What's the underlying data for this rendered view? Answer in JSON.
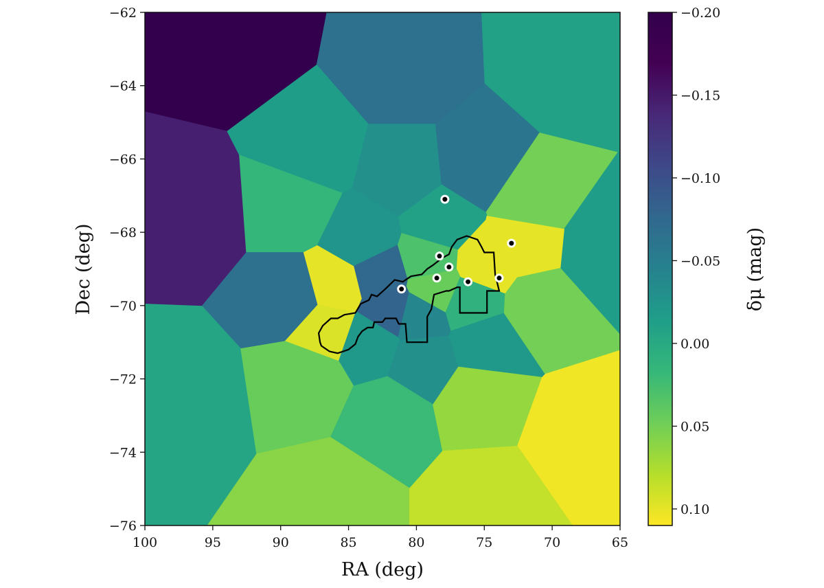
{
  "chart_data": {
    "type": "heatmap",
    "title": "",
    "xlabel": "RA (deg)",
    "ylabel": "Dec (deg)",
    "xlim": [
      100,
      65
    ],
    "ylim": [
      -76,
      -62
    ],
    "x_ticks": [
      100,
      95,
      90,
      85,
      80,
      75,
      70,
      65
    ],
    "x_tick_labels": [
      "100",
      "95",
      "90",
      "85",
      "80",
      "75",
      "70",
      "65"
    ],
    "y_ticks": [
      -62,
      -64,
      -66,
      -68,
      -70,
      -72,
      -74,
      -76
    ],
    "y_tick_labels": [
      "−62",
      "−64",
      "−66",
      "−68",
      "−70",
      "−72",
      "−74",
      "−76"
    ],
    "colorbar": {
      "label": "δμ (mag)",
      "range": [
        0.11,
        -0.2
      ],
      "ticks": [
        -0.2,
        -0.15,
        -0.1,
        -0.05,
        0.0,
        0.05,
        0.1
      ],
      "tick_labels": [
        "−0.20",
        "−0.15",
        "−0.10",
        "−0.05",
        "0.00",
        "0.05",
        "0.10"
      ],
      "colormap": "viridis"
    },
    "grid": false,
    "cells": [
      {
        "ra": 93.5,
        "dec": -62.8,
        "value": -0.2
      },
      {
        "ra": 81.0,
        "dec": -63.7,
        "value": -0.065
      },
      {
        "ra": 69.0,
        "dec": -63.5,
        "value": -0.01
      },
      {
        "ra": 96.5,
        "dec": -67.5,
        "value": -0.145
      },
      {
        "ra": 87.5,
        "dec": -65.8,
        "value": -0.015
      },
      {
        "ra": 81.0,
        "dec": -66.4,
        "value": -0.03
      },
      {
        "ra": 75.5,
        "dec": -66.2,
        "value": -0.06
      },
      {
        "ra": 89.0,
        "dec": -67.3,
        "value": 0.015
      },
      {
        "ra": 84.0,
        "dec": -68.2,
        "value": -0.025
      },
      {
        "ra": 71.5,
        "dec": -67.2,
        "value": 0.05
      },
      {
        "ra": 66.5,
        "dec": -68.5,
        "value": -0.015
      },
      {
        "ra": 78.2,
        "dec": -67.8,
        "value": -0.01
      },
      {
        "ra": 89.0,
        "dec": -69.8,
        "value": -0.065
      },
      {
        "ra": 82.7,
        "dec": -69.2,
        "value": -0.075
      },
      {
        "ra": 79.0,
        "dec": -68.8,
        "value": 0.03
      },
      {
        "ra": 75.0,
        "dec": -68.9,
        "value": 0.1
      },
      {
        "ra": 72.0,
        "dec": -68.3,
        "value": 0.1
      },
      {
        "ra": 86.0,
        "dec": -69.5,
        "value": 0.1
      },
      {
        "ra": 86.6,
        "dec": -70.6,
        "value": 0.095
      },
      {
        "ra": 82.0,
        "dec": -70.1,
        "value": -0.08
      },
      {
        "ra": 79.8,
        "dec": -70.3,
        "value": -0.04
      },
      {
        "ra": 78.6,
        "dec": -69.5,
        "value": 0.045
      },
      {
        "ra": 76.0,
        "dec": -69.9,
        "value": 0.01
      },
      {
        "ra": 83.5,
        "dec": -71.0,
        "value": -0.02
      },
      {
        "ra": 79.5,
        "dec": -71.5,
        "value": -0.03
      },
      {
        "ra": 75.0,
        "dec": -71.0,
        "value": -0.02
      },
      {
        "ra": 71.0,
        "dec": -70.0,
        "value": 0.05
      },
      {
        "ra": 97.0,
        "dec": -72.5,
        "value": -0.005
      },
      {
        "ra": 88.0,
        "dec": -72.0,
        "value": 0.045
      },
      {
        "ra": 82.0,
        "dec": -73.0,
        "value": 0.02
      },
      {
        "ra": 75.5,
        "dec": -72.5,
        "value": 0.065
      },
      {
        "ra": 68.0,
        "dec": -73.5,
        "value": 0.105
      },
      {
        "ra": 86.0,
        "dec": -75.3,
        "value": 0.06
      },
      {
        "ra": 75.0,
        "dec": -75.3,
        "value": 0.085
      }
    ],
    "outline": [
      [
        87.0,
        -71.1
      ],
      [
        86.4,
        -71.25
      ],
      [
        85.8,
        -71.3
      ],
      [
        85.0,
        -71.2
      ],
      [
        84.5,
        -71.05
      ],
      [
        84.3,
        -70.85
      ],
      [
        84.0,
        -70.7
      ],
      [
        83.6,
        -70.6
      ],
      [
        83.2,
        -70.6
      ],
      [
        83.1,
        -70.45
      ],
      [
        82.5,
        -70.45
      ],
      [
        82.3,
        -70.35
      ],
      [
        81.5,
        -70.35
      ],
      [
        81.3,
        -70.5
      ],
      [
        80.8,
        -70.5
      ],
      [
        80.7,
        -71.0
      ],
      [
        79.2,
        -71.0
      ],
      [
        79.2,
        -70.3
      ],
      [
        78.9,
        -70.1
      ],
      [
        78.7,
        -69.7
      ],
      [
        77.8,
        -69.6
      ],
      [
        77.6,
        -69.6
      ],
      [
        77.0,
        -69.5
      ],
      [
        76.8,
        -69.5
      ],
      [
        76.8,
        -70.2
      ],
      [
        74.8,
        -70.2
      ],
      [
        74.8,
        -69.6
      ],
      [
        73.9,
        -69.6
      ],
      [
        74.2,
        -69.15
      ],
      [
        74.3,
        -68.55
      ],
      [
        75.0,
        -68.55
      ],
      [
        75.2,
        -68.4
      ],
      [
        75.5,
        -68.2
      ],
      [
        76.3,
        -68.1
      ],
      [
        77.0,
        -68.2
      ],
      [
        77.4,
        -68.4
      ],
      [
        77.6,
        -68.6
      ],
      [
        78.1,
        -68.7
      ],
      [
        78.8,
        -68.9
      ],
      [
        79.2,
        -69.0
      ],
      [
        79.6,
        -69.15
      ],
      [
        80.4,
        -69.2
      ],
      [
        81.0,
        -69.35
      ],
      [
        81.6,
        -69.3
      ],
      [
        82.3,
        -69.55
      ],
      [
        82.9,
        -69.75
      ],
      [
        83.3,
        -69.7
      ],
      [
        83.5,
        -69.85
      ],
      [
        84.1,
        -69.95
      ],
      [
        84.5,
        -70.2
      ],
      [
        85.3,
        -70.25
      ],
      [
        85.8,
        -70.35
      ],
      [
        86.3,
        -70.35
      ],
      [
        86.9,
        -70.55
      ],
      [
        87.2,
        -70.75
      ],
      [
        87.1,
        -71.0
      ]
    ],
    "markers": [
      {
        "ra": 77.9,
        "dec": -67.1
      },
      {
        "ra": 73.0,
        "dec": -68.3
      },
      {
        "ra": 78.3,
        "dec": -68.65
      },
      {
        "ra": 77.6,
        "dec": -68.95
      },
      {
        "ra": 78.5,
        "dec": -69.25
      },
      {
        "ra": 76.2,
        "dec": -69.35
      },
      {
        "ra": 73.9,
        "dec": -69.25
      },
      {
        "ra": 81.1,
        "dec": -69.55
      }
    ]
  }
}
